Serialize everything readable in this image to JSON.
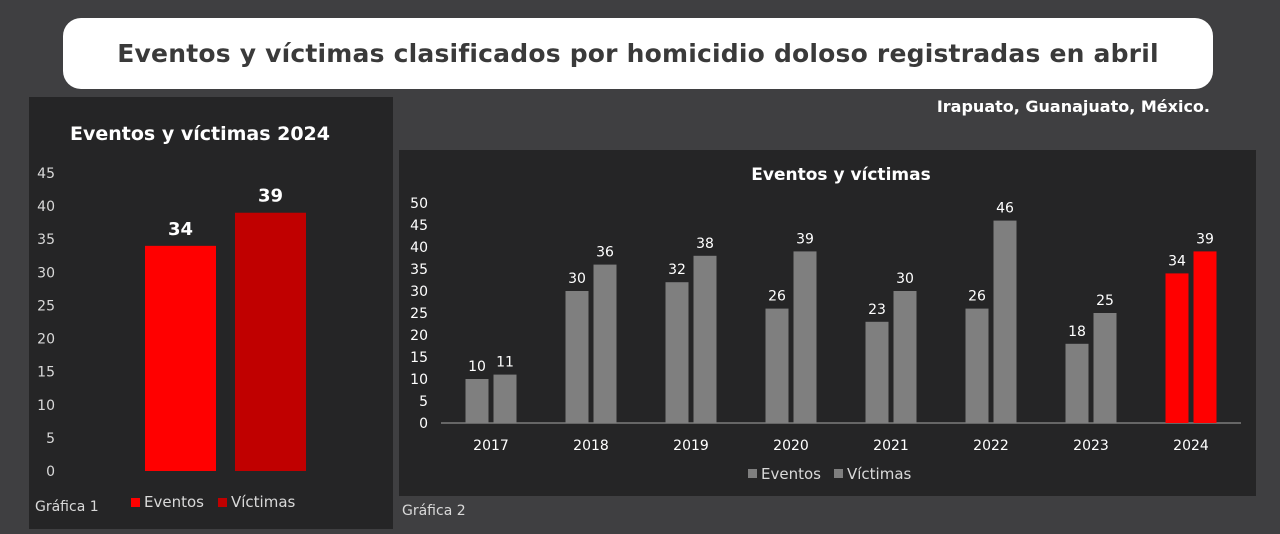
{
  "header": {
    "title": "Eventos y víctimas clasificados por homicidio doloso registradas en abril",
    "location": "Irapuato, Guanajuato, México."
  },
  "colors": {
    "eventos_red": "#ff0000",
    "victimas_dark_red": "#c00000",
    "gray_bar": "#7f7f7f",
    "panel_bg": "#252526",
    "page_bg": "#3f3f41"
  },
  "chart_data": [
    {
      "type": "bar",
      "title": "Eventos y víctimas 2024",
      "footnote": "Gráfica 1",
      "categories": [
        "Eventos",
        "Víctimas"
      ],
      "values": [
        34,
        39
      ],
      "colors": [
        "#ff0000",
        "#c00000"
      ],
      "ylim": [
        0,
        45
      ],
      "yticks": [
        0,
        5,
        10,
        15,
        20,
        25,
        30,
        35,
        40,
        45
      ],
      "legend": [
        "Eventos",
        "Víctimas"
      ],
      "legend_position": "bottom",
      "grid": false
    },
    {
      "type": "bar",
      "title": "Eventos y víctimas",
      "footnote": "Gráfica 2",
      "categories": [
        "2017",
        "2018",
        "2019",
        "2020",
        "2021",
        "2022",
        "2023",
        "2024"
      ],
      "series": [
        {
          "name": "Eventos",
          "values": [
            10,
            30,
            32,
            26,
            23,
            26,
            18,
            34
          ]
        },
        {
          "name": "Víctimas",
          "values": [
            11,
            36,
            38,
            39,
            30,
            46,
            25,
            39
          ]
        }
      ],
      "highlight_category": "2024",
      "highlight_color": "#ff0000",
      "base_color": "#7f7f7f",
      "ylim": [
        0,
        50
      ],
      "yticks": [
        0,
        5,
        10,
        15,
        20,
        25,
        30,
        35,
        40,
        45,
        50
      ],
      "legend_position": "bottom",
      "grid": false
    }
  ]
}
